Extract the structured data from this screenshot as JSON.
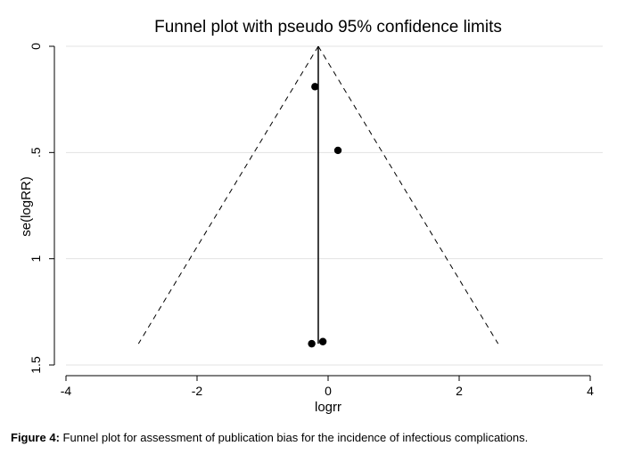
{
  "chart_data": {
    "type": "scatter",
    "title": "Funnel plot with pseudo 95% confidence limits",
    "xlabel": "logrr",
    "ylabel": "se(logRR)",
    "xlim": [
      -4,
      4
    ],
    "ylim": [
      0,
      1.5
    ],
    "y_reversed": true,
    "x_ticks": [
      -4,
      -2,
      0,
      2,
      4
    ],
    "x_tick_labels": [
      "-4",
      "-2",
      "0",
      "2",
      "4"
    ],
    "y_ticks": [
      0,
      0.5,
      1,
      1.5
    ],
    "y_tick_labels": [
      "0",
      ".5",
      "1",
      "1.5"
    ],
    "grid": true,
    "pooled_estimate": -0.15,
    "funnel_se_max": 1.4,
    "points": [
      {
        "x": -0.2,
        "y": 0.19
      },
      {
        "x": 0.15,
        "y": 0.49
      },
      {
        "x": -0.25,
        "y": 1.4
      },
      {
        "x": -0.08,
        "y": 1.39
      }
    ]
  },
  "caption": {
    "label": "Figure 4:",
    "text": " Funnel plot for assessment of publication bias for the incidence of infectious complications."
  }
}
